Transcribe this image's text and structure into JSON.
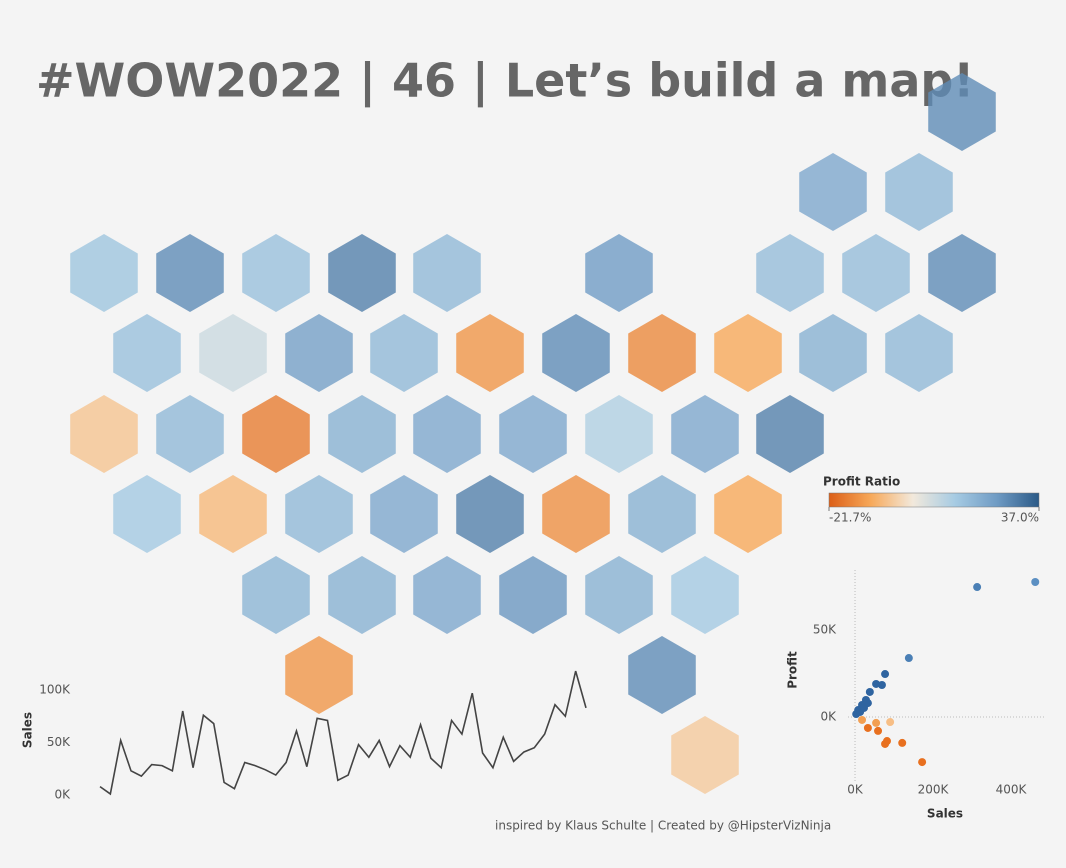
{
  "title": "#WOW2022 | 46 | Let’s build a map!",
  "credit": "inspired by Klaus Schulte | Created by @HipsterVizNinja",
  "chart_data": [
    {
      "type": "hexmap",
      "values": [
        28,
        22,
        18,
        15,
        28,
        16,
        30,
        18,
        25,
        17,
        17,
        28,
        16,
        8,
        24,
        18,
        -13,
        28,
        -15,
        -10,
        20,
        18,
        -5,
        18,
        -17,
        20,
        22,
        22,
        12,
        22,
        30,
        14,
        -7,
        18,
        22,
        30,
        -14,
        20,
        -10,
        19,
        20,
        22,
        26,
        20,
        14,
        -13,
        28,
        -4
      ],
      "legend": {
        "title": "Profit Ratio",
        "ticks": [
          {
            "value": -21.7,
            "label": "-21.7%"
          },
          {
            "value": 37.0,
            "label": "37.0%"
          }
        ],
        "colors": [
          "#dc5f17",
          "#f7a95a",
          "#f2e9dc",
          "#a6cbe3",
          "#6f9bc4",
          "#2b5a87"
        ]
      }
    },
    {
      "type": "line",
      "y_label": "Sales",
      "color": "#444444",
      "values": [
        8000,
        1000,
        52000,
        23000,
        18000,
        29000,
        28000,
        23000,
        80000,
        26000,
        76000,
        68000,
        12000,
        6000,
        31000,
        28000,
        24000,
        19000,
        31000,
        61000,
        27000,
        73000,
        71000,
        14000,
        19000,
        48000,
        36000,
        52000,
        27000,
        47000,
        36000,
        67000,
        35000,
        26000,
        71000,
        58000,
        97000,
        40000,
        26000,
        55000,
        32000,
        41000,
        45000,
        58000,
        86000,
        75000,
        118000,
        83000
      ],
      "ylim": [
        0,
        100000
      ],
      "yticks": [
        {
          "value": 0,
          "label": "0K"
        },
        {
          "value": 50000,
          "label": "50K"
        },
        {
          "value": 100000,
          "label": "100K"
        }
      ]
    },
    {
      "type": "scatter",
      "x_label": "Sales",
      "y_label": "Profit",
      "x": [
        313000,
        462000,
        138000,
        77000,
        54000,
        69000,
        38000,
        28000,
        18000,
        8000,
        3000,
        13000,
        23000,
        33000,
        18000,
        33000,
        54000,
        90000,
        59000,
        82000,
        77000,
        121000,
        172000
      ],
      "values": [
        74700,
        77600,
        33900,
        24700,
        19000,
        18400,
        14400,
        9800,
        6900,
        4000,
        1700,
        2900,
        5200,
        8000,
        -1700,
        -6300,
        -3400,
        -2900,
        -8000,
        -13800,
        -15500,
        -14900,
        -25900
      ],
      "colors": [
        "#4a7fb5",
        "#5b8fc2",
        "#4a7fb5",
        "#2f64a0",
        "#2f64a0",
        "#2f64a0",
        "#2f64a0",
        "#2f64a0",
        "#2f64a0",
        "#2f64a0",
        "#2f64a0",
        "#2f64a0",
        "#2f64a0",
        "#2f64a0",
        "#f29f52",
        "#e8701f",
        "#f29f52",
        "#f7be85",
        "#e8701f",
        "#e8701f",
        "#e8701f",
        "#e8701f",
        "#e8701f"
      ],
      "xlim": [
        -18000,
        487000
      ],
      "ylim": [
        -47700,
        84500
      ],
      "xticks": [
        {
          "value": 0,
          "label": "0K"
        },
        {
          "value": 200000,
          "label": "200K"
        },
        {
          "value": 400000,
          "label": "400K"
        }
      ],
      "yticks": [
        {
          "value": 0,
          "label": "0K"
        },
        {
          "value": 50000,
          "label": "50K"
        }
      ]
    }
  ]
}
